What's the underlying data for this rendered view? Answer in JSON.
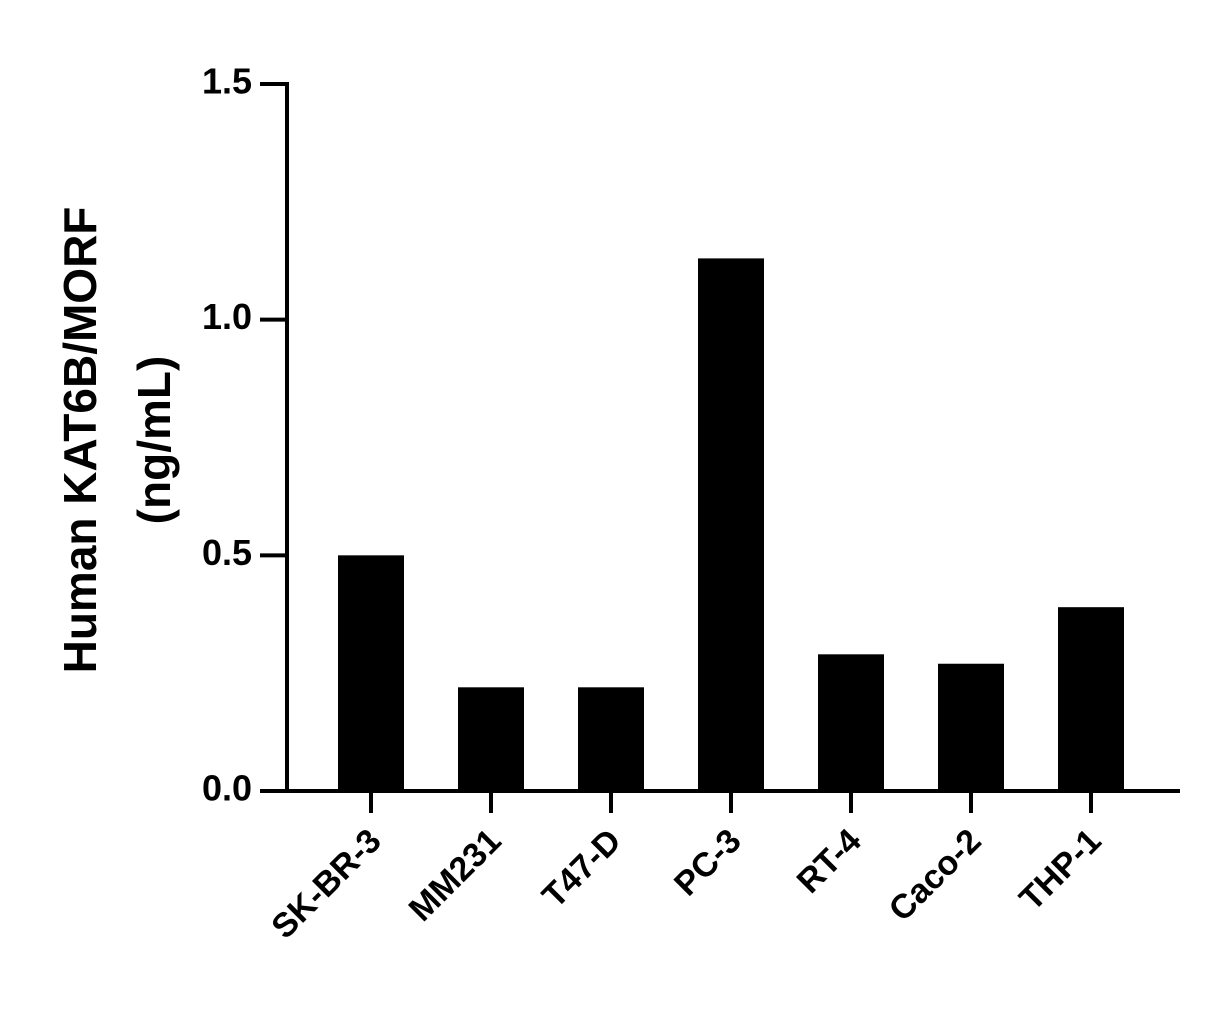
{
  "chart_data": {
    "type": "bar",
    "y_label_lines": [
      "Human KAT6B/MORF",
      "(ng/mL)"
    ],
    "categories": [
      "SK-BR-3",
      "MM231",
      "T47-D",
      "PC-3",
      "RT-4",
      "Caco-2",
      "THP-1"
    ],
    "values": [
      0.5,
      0.22,
      0.22,
      1.13,
      0.29,
      0.27,
      0.39
    ],
    "color": "#000000",
    "ylim": [
      0,
      1.5
    ],
    "yticks": [
      {
        "value": 0,
        "label": "0.0"
      },
      0.5,
      {
        "value": 1,
        "label": "1.0"
      },
      1.5
    ],
    "grid": false
  }
}
